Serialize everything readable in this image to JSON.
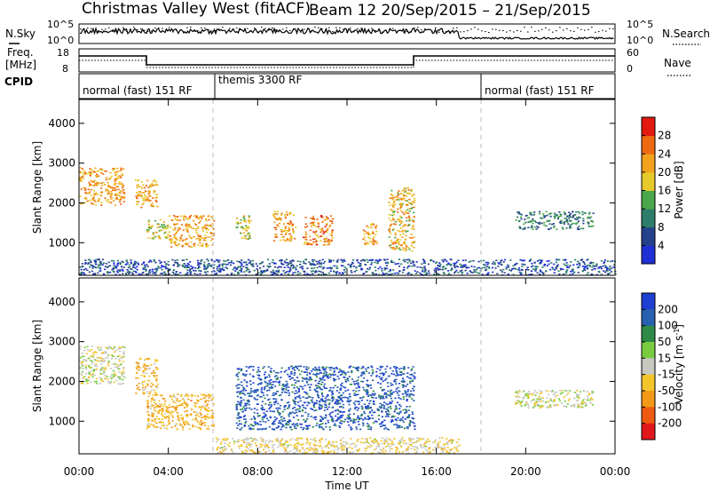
{
  "title_left": "Christmas Valley West (fitACF)",
  "title_right": "Beam 12  20/Sep/2015 – 21/Sep/2015",
  "panel_nsky": {
    "left_label": "N.Sky",
    "right_label": "N.Search",
    "left_ticks": [
      "10^5",
      "10^0"
    ],
    "right_ticks": [
      "10^5",
      "10^0"
    ]
  },
  "panel_freq": {
    "left_label_1": "Freq.",
    "left_label_2": "[MHz]",
    "left_ticks": [
      "18",
      "8"
    ],
    "right_label": "Nave",
    "right_ticks": [
      "60",
      "0"
    ]
  },
  "panel_cpid": {
    "label": "CPID",
    "segments": [
      "normal (fast) 151 RF",
      "themis 3300 RF",
      "normal (fast) 151 RF"
    ]
  },
  "x_axis": {
    "label": "Time UT",
    "ticks": [
      "00:00",
      "04:00",
      "08:00",
      "12:00",
      "16:00",
      "20:00",
      "00:00"
    ]
  },
  "y_axis": {
    "label": "Slant Range [km]",
    "ticks": [
      "1000",
      "2000",
      "3000",
      "4000"
    ]
  },
  "colorbar_power": {
    "label": "Power [dB]",
    "ticks": [
      "4",
      "8",
      "12",
      "16",
      "20",
      "24",
      "28"
    ],
    "colors": [
      "#1f2fd6",
      "#26418c",
      "#2e7d6a",
      "#4aa84a",
      "#e6c92a",
      "#f2a21c",
      "#ee6a12",
      "#e21a10"
    ]
  },
  "colorbar_velocity": {
    "label_1": "Velocity",
    "label_2": "[m s",
    "label_sup": "-1",
    "label_3": "]",
    "ticks": [
      "200",
      "100",
      "50",
      "15",
      "-15",
      "-50",
      "-100",
      "-200"
    ],
    "colors": [
      "#1f3fd2",
      "#2860b0",
      "#2f8a48",
      "#7acb42",
      "#c8c8c0",
      "#f4c52a",
      "#f29a18",
      "#ee5a12",
      "#e0181c"
    ]
  },
  "chart_data": [
    {
      "type": "heatmap",
      "title": "Christmas Valley West (fitACF)  Beam 12  20/Sep/2015 – 21/Sep/2015",
      "xlabel": "Time UT",
      "ylabel": "Slant Range [km]",
      "xlim": [
        "00:00",
        "24:00"
      ],
      "ylim": [
        180,
        4600
      ],
      "parameter": "Power [dB]",
      "color_range": [
        0,
        32
      ],
      "features": [
        {
          "time": "00:00-02:00",
          "range_km": [
            1950,
            2900
          ],
          "power_db": 22
        },
        {
          "time": "02:30-03:30",
          "range_km": [
            1900,
            2600
          ],
          "power_db": 22
        },
        {
          "time": "03:00-04:00",
          "range_km": [
            1100,
            1600
          ],
          "power_db": 18
        },
        {
          "time": "04:00-06:00",
          "range_km": [
            900,
            1700
          ],
          "power_db": 22
        },
        {
          "time": "07:00-07:40",
          "range_km": [
            1100,
            1700
          ],
          "power_db": 18
        },
        {
          "time": "08:40-09:40",
          "range_km": [
            1050,
            1800
          ],
          "power_db": 22
        },
        {
          "time": "10:00-11:20",
          "range_km": [
            950,
            1700
          ],
          "power_db": 24
        },
        {
          "time": "12:40-13:20",
          "range_km": [
            950,
            1500
          ],
          "power_db": 22
        },
        {
          "time": "13:50-15:00",
          "range_km": [
            800,
            2400
          ],
          "power_db": 20
        },
        {
          "time": "19:30-23:00",
          "range_km": [
            1350,
            1800
          ],
          "power_db": 10
        },
        {
          "time": "00:00-24:00",
          "range_km": [
            200,
            600
          ],
          "power_db": 6
        }
      ]
    },
    {
      "type": "heatmap",
      "title": "",
      "xlabel": "Time UT",
      "ylabel": "Slant Range [km]",
      "xlim": [
        "00:00",
        "24:00"
      ],
      "ylim": [
        180,
        4600
      ],
      "parameter": "Velocity [m s^-1]",
      "color_range": [
        -250,
        250
      ],
      "features": [
        {
          "time": "00:00-02:00",
          "range_km": [
            1950,
            2900
          ],
          "velocity": 0
        },
        {
          "time": "02:30-03:30",
          "range_km": [
            1700,
            2600
          ],
          "velocity": -60
        },
        {
          "time": "03:00-06:00",
          "range_km": [
            800,
            1700
          ],
          "velocity": -80
        },
        {
          "time": "07:00-15:00",
          "range_km": [
            800,
            2400
          ],
          "velocity": 180
        },
        {
          "time": "19:30-23:00",
          "range_km": [
            1350,
            1800
          ],
          "velocity": 0
        },
        {
          "time": "06:00-17:00",
          "range_km": [
            200,
            600
          ],
          "velocity": -30
        }
      ]
    }
  ]
}
